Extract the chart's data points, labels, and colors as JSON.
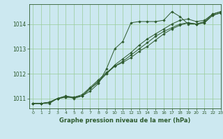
{
  "title": "Graphe pression niveau de la mer (hPa)",
  "background_color": "#cce8f0",
  "grid_color": "#99cc99",
  "line_color": "#2d5a2d",
  "xlim": [
    -0.5,
    23
  ],
  "ylim": [
    1010.6,
    1014.8
  ],
  "yticks": [
    1011,
    1012,
    1013,
    1014
  ],
  "xticks": [
    0,
    1,
    2,
    3,
    4,
    5,
    6,
    7,
    8,
    9,
    10,
    11,
    12,
    13,
    14,
    15,
    16,
    17,
    18,
    19,
    20,
    21,
    22,
    23
  ],
  "series": [
    [
      1010.8,
      1010.8,
      1010.8,
      1011.0,
      1011.1,
      1011.0,
      1011.1,
      1011.3,
      1011.6,
      1012.2,
      1013.0,
      1013.3,
      1014.05,
      1014.1,
      1014.1,
      1014.1,
      1014.15,
      1014.5,
      1014.3,
      1014.0,
      1014.0,
      1014.1,
      1014.4,
      1014.5
    ],
    [
      1010.8,
      1010.8,
      1010.85,
      1011.0,
      1011.05,
      1011.05,
      1011.1,
      1011.4,
      1011.65,
      1012.0,
      1012.35,
      1012.6,
      1012.85,
      1013.15,
      1013.4,
      1013.6,
      1013.8,
      1014.0,
      1014.15,
      1014.2,
      1014.1,
      1014.15,
      1014.4,
      1014.5
    ],
    [
      1010.8,
      1010.8,
      1010.85,
      1011.0,
      1011.05,
      1011.05,
      1011.15,
      1011.45,
      1011.75,
      1012.05,
      1012.3,
      1012.5,
      1012.75,
      1013.0,
      1013.25,
      1013.5,
      1013.7,
      1013.85,
      1014.0,
      1014.05,
      1014.0,
      1014.05,
      1014.35,
      1014.45
    ],
    [
      1010.8,
      1010.8,
      1010.85,
      1011.0,
      1011.1,
      1011.05,
      1011.1,
      1011.4,
      1011.7,
      1012.0,
      1012.3,
      1012.45,
      1012.65,
      1012.9,
      1013.1,
      1013.35,
      1013.6,
      1013.8,
      1013.95,
      1014.05,
      1014.0,
      1014.05,
      1014.35,
      1014.45
    ]
  ]
}
